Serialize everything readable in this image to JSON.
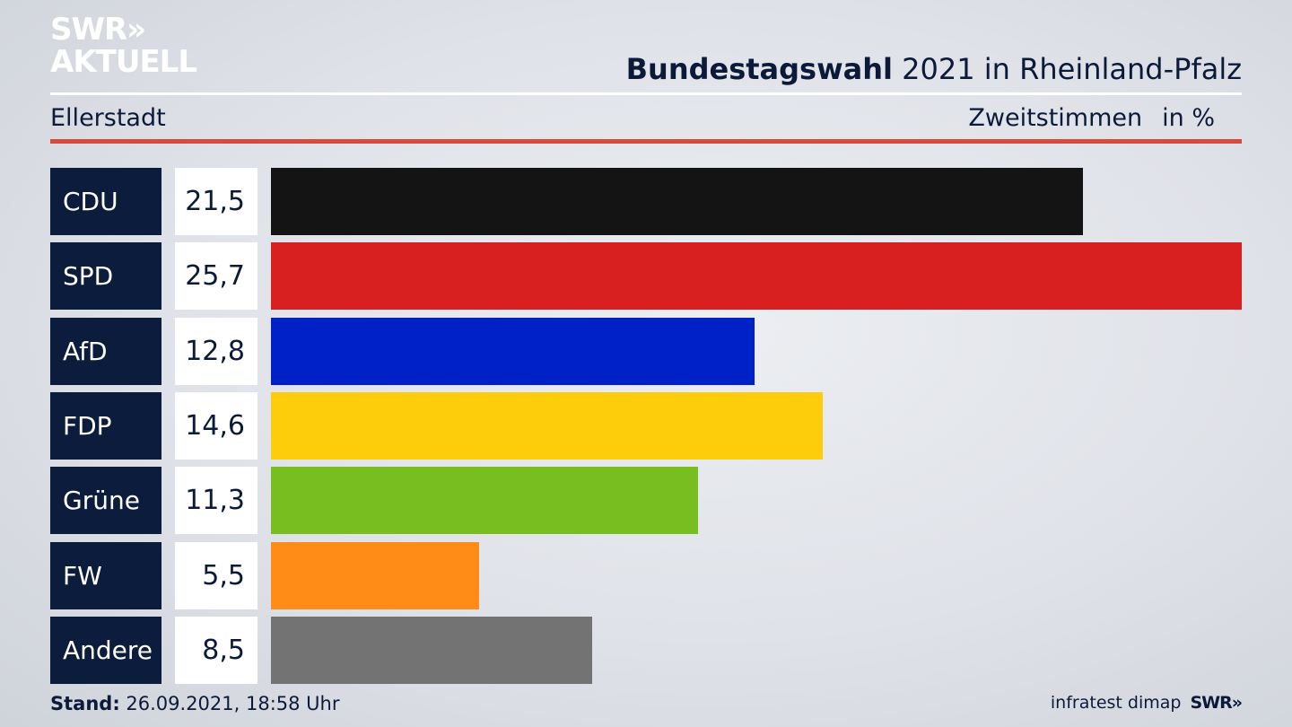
{
  "branding": {
    "logo_line1": "SWR»",
    "logo_line2": "AKTUELL",
    "footer_source": "infratest dimap",
    "footer_logo": "SWR»"
  },
  "header": {
    "title_bold": "Bundestagswahl",
    "title_rest": " 2021 in Rheinland-Pfalz",
    "location": "Ellerstadt",
    "metric": "Zweitstimmen",
    "unit": "in %"
  },
  "footer": {
    "stand_label": "Stand:",
    "stand_value": " 26.09.2021, 18:58 Uhr"
  },
  "colors": {
    "accent_red": "#d94a3a",
    "label_bg": "#0c1c3c"
  },
  "chart_data": {
    "type": "bar",
    "orientation": "horizontal",
    "title": "Bundestagswahl 2021 in Rheinland-Pfalz",
    "subtitle": "Ellerstadt",
    "unit": "in %",
    "categories": [
      "CDU",
      "SPD",
      "AfD",
      "FDP",
      "Grüne",
      "FW",
      "Andere"
    ],
    "values": [
      21.5,
      25.7,
      12.8,
      14.6,
      11.3,
      5.5,
      8.5
    ],
    "value_labels": [
      "21,5",
      "25,7",
      "12,8",
      "14,6",
      "11,3",
      "5,5",
      "8,5"
    ],
    "colors": [
      "#141414",
      "#d82020",
      "#0020c8",
      "#fdcc0a",
      "#78be20",
      "#ff8c16",
      "#737373"
    ],
    "grid": false,
    "legend": "none"
  }
}
